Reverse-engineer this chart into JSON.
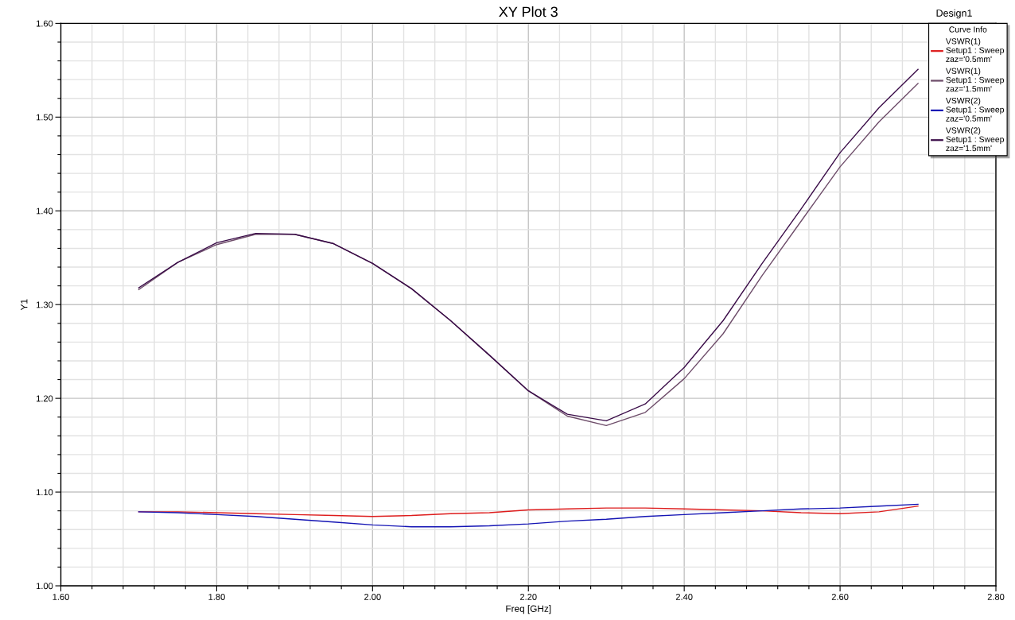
{
  "chart_data": {
    "type": "line",
    "title": "XY Plot 3",
    "xlabel": "Freq [GHz]",
    "ylabel": "Y1",
    "legend_title": "Curve Info",
    "annotations": [
      "Design1"
    ],
    "x": [
      1.7,
      1.75,
      1.8,
      1.85,
      1.9,
      1.95,
      2.0,
      2.05,
      2.1,
      2.15,
      2.2,
      2.25,
      2.3,
      2.35,
      2.4,
      2.45,
      2.5,
      2.55,
      2.6,
      2.65,
      2.7
    ],
    "series": [
      {
        "name": "VSWR(1)\nSetup1 : Sweep\nzaz='0.5mm'",
        "color": "#dd1c1c",
        "values": [
          1.079,
          1.079,
          1.078,
          1.077,
          1.076,
          1.075,
          1.074,
          1.075,
          1.077,
          1.078,
          1.081,
          1.082,
          1.083,
          1.083,
          1.082,
          1.081,
          1.08,
          1.078,
          1.077,
          1.079,
          1.085
        ]
      },
      {
        "name": "VSWR(1)\nSetup1 : Sweep\nzaz='1.5mm'",
        "color": "#6e4d6a",
        "values": [
          1.316,
          1.345,
          1.364,
          1.375,
          1.375,
          1.365,
          1.344,
          1.317,
          1.283,
          1.246,
          1.208,
          1.181,
          1.171,
          1.185,
          1.221,
          1.269,
          1.331,
          1.389,
          1.447,
          1.495,
          1.536
        ]
      },
      {
        "name": "VSWR(2)\nSetup1 : Sweep\nzaz='0.5mm'",
        "color": "#1414b4",
        "values": [
          1.079,
          1.078,
          1.076,
          1.074,
          1.071,
          1.068,
          1.065,
          1.063,
          1.063,
          1.064,
          1.066,
          1.069,
          1.071,
          1.074,
          1.076,
          1.078,
          1.08,
          1.082,
          1.083,
          1.085,
          1.087
        ]
      },
      {
        "name": "VSWR(2)\nSetup1 : Sweep\nzaz='1.5mm'",
        "color": "#3a0c48",
        "values": [
          1.318,
          1.345,
          1.366,
          1.376,
          1.375,
          1.365,
          1.344,
          1.317,
          1.283,
          1.246,
          1.208,
          1.183,
          1.176,
          1.194,
          1.233,
          1.283,
          1.344,
          1.402,
          1.462,
          1.51,
          1.551
        ]
      }
    ],
    "xlim": [
      1.6,
      2.8
    ],
    "ylim": [
      1.0,
      1.6
    ],
    "xticks": [
      {
        "value": 1.6,
        "label": "1.60"
      },
      {
        "value": 1.64,
        "label": null
      },
      {
        "value": 1.68,
        "label": null
      },
      {
        "value": 1.72,
        "label": null
      },
      {
        "value": 1.76,
        "label": null
      },
      {
        "value": 1.8,
        "label": "1.80"
      },
      {
        "value": 1.84,
        "label": null
      },
      {
        "value": 1.88,
        "label": null
      },
      {
        "value": 1.92,
        "label": null
      },
      {
        "value": 1.96,
        "label": null
      },
      {
        "value": 2.0,
        "label": "2.00"
      },
      {
        "value": 2.04,
        "label": null
      },
      {
        "value": 2.08,
        "label": null
      },
      {
        "value": 2.12,
        "label": null
      },
      {
        "value": 2.16,
        "label": null
      },
      {
        "value": 2.2,
        "label": "2.20"
      },
      {
        "value": 2.24,
        "label": null
      },
      {
        "value": 2.28,
        "label": null
      },
      {
        "value": 2.32,
        "label": null
      },
      {
        "value": 2.36,
        "label": null
      },
      {
        "value": 2.4,
        "label": "2.40"
      },
      {
        "value": 2.44,
        "label": null
      },
      {
        "value": 2.48,
        "label": null
      },
      {
        "value": 2.52,
        "label": null
      },
      {
        "value": 2.56,
        "label": null
      },
      {
        "value": 2.6,
        "label": "2.60"
      },
      {
        "value": 2.64,
        "label": null
      },
      {
        "value": 2.68,
        "label": null
      },
      {
        "value": 2.72,
        "label": null
      },
      {
        "value": 2.76,
        "label": null
      },
      {
        "value": 2.8,
        "label": "2.80"
      }
    ],
    "yticks": [
      {
        "value": 1.0,
        "label": "1.00"
      },
      {
        "value": 1.02,
        "label": null
      },
      {
        "value": 1.04,
        "label": null
      },
      {
        "value": 1.06,
        "label": null
      },
      {
        "value": 1.08,
        "label": null
      },
      {
        "value": 1.1,
        "label": "1.10"
      },
      {
        "value": 1.12,
        "label": null
      },
      {
        "value": 1.14,
        "label": null
      },
      {
        "value": 1.16,
        "label": null
      },
      {
        "value": 1.18,
        "label": null
      },
      {
        "value": 1.2,
        "label": "1.20"
      },
      {
        "value": 1.22,
        "label": null
      },
      {
        "value": 1.24,
        "label": null
      },
      {
        "value": 1.26,
        "label": null
      },
      {
        "value": 1.28,
        "label": null
      },
      {
        "value": 1.3,
        "label": "1.30"
      },
      {
        "value": 1.32,
        "label": null
      },
      {
        "value": 1.34,
        "label": null
      },
      {
        "value": 1.36,
        "label": null
      },
      {
        "value": 1.38,
        "label": null
      },
      {
        "value": 1.4,
        "label": "1.40"
      },
      {
        "value": 1.42,
        "label": null
      },
      {
        "value": 1.44,
        "label": null
      },
      {
        "value": 1.46,
        "label": null
      },
      {
        "value": 1.48,
        "label": null
      },
      {
        "value": 1.5,
        "label": "1.50"
      },
      {
        "value": 1.52,
        "label": null
      },
      {
        "value": 1.54,
        "label": null
      },
      {
        "value": 1.56,
        "label": null
      },
      {
        "value": 1.58,
        "label": null
      },
      {
        "value": 1.6,
        "label": "1.60"
      }
    ],
    "grid": true,
    "legend": "top right",
    "line_style": "solid"
  }
}
